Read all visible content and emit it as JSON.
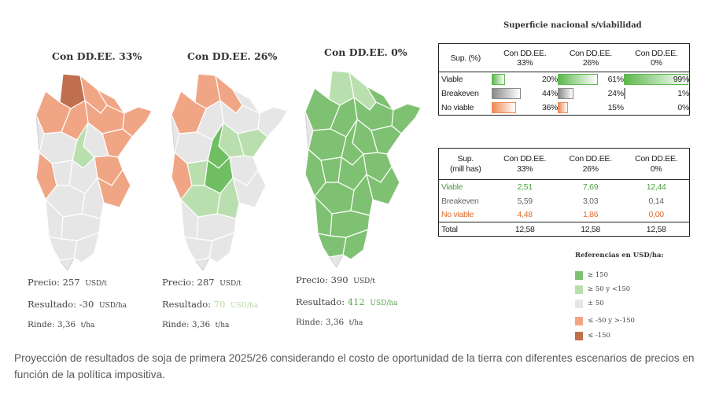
{
  "maps": [
    {
      "title": "Con DD.EE. 33%",
      "precio_label": "Precio:",
      "precio_value": "257",
      "precio_unit": "USD/t",
      "resultado_label": "Resultado:",
      "resultado_value": "-30",
      "resultado_unit": "USD/ha",
      "resultado_color": "#444444",
      "rinde_label": "Rinde:",
      "rinde_value": "3,36",
      "rinde_unit": "t/ha",
      "region_colors": [
        "#c0704f",
        "#f0a585",
        "#f0a585",
        "#f0a585",
        "#f0a585",
        "#f0a585",
        "#f0a585",
        "#f0a585",
        "#e6e6e6",
        "#b9dfae",
        "#e6e6e6",
        "#f0a585",
        "#e6e6e6",
        "#f0a585",
        "#e6e6e6",
        "#f0a585",
        "#e6e6e6",
        "#e6e6e6",
        "#e6e6e6",
        "#e6e6e6",
        "#e6e6e6",
        "#e6e6e6"
      ]
    },
    {
      "title": "Con DD.EE. 26%",
      "precio_label": "Precio:",
      "precio_value": "287",
      "precio_unit": "USD/t",
      "resultado_label": "Resultado:",
      "resultado_value": "70",
      "resultado_unit": "USD/ha",
      "resultado_color": "#b8d9a9",
      "rinde_label": "Rinde:",
      "rinde_value": "3,36",
      "rinde_unit": "t/ha",
      "region_colors": [
        "#f0a585",
        "#f0a585",
        "#e6e6e6",
        "#e6e6e6",
        "#e6e6e6",
        "#f0a585",
        "#e6e6e6",
        "#b9dfae",
        "#b9dfae",
        "#6fbe62",
        "#e6e6e6",
        "#f0a585",
        "#6fbe62",
        "#e6e6e6",
        "#b9dfae",
        "#e6e6e6",
        "#b9dfae",
        "#b9dfae",
        "#e6e6e6",
        "#e6e6e6",
        "#e6e6e6",
        "#e6e6e6"
      ]
    },
    {
      "title": "Con DD.EE. 0%",
      "precio_label": "Precio:",
      "precio_value": "390",
      "precio_unit": "USD/t",
      "resultado_label": "Resultado:",
      "resultado_value": "412",
      "resultado_unit": "USD/ha",
      "resultado_color": "#5aa84f",
      "rinde_label": "Rinde:",
      "rinde_value": "3,36",
      "rinde_unit": "t/ha",
      "region_colors": [
        "#b9dfae",
        "#b9dfae",
        "#7fc172",
        "#7fc172",
        "#7fc172",
        "#7fc172",
        "#7fc172",
        "#7fc172",
        "#7fc172",
        "#7fc172",
        "#7fc172",
        "#7fc172",
        "#7fc172",
        "#7fc172",
        "#7fc172",
        "#7fc172",
        "#7fc172",
        "#7fc172",
        "#7fc172",
        "#7fc172",
        "#7fc172",
        "#7fc172"
      ]
    }
  ],
  "table1": {
    "title": "Superficie nacional s/viabilidad",
    "header": [
      [
        "Sup. (%)",
        ""
      ],
      [
        "Con DD.EE.",
        "33%"
      ],
      [
        "Con DD.EE.",
        "26%"
      ],
      [
        "Con DD.EE.",
        "0%"
      ]
    ],
    "rows": [
      {
        "label": "Viable",
        "color": "#5cb84c",
        "values": [
          "20%",
          "61%",
          "99%"
        ],
        "fractions": [
          0.2,
          0.61,
          0.99
        ]
      },
      {
        "label": "Breakeven",
        "color": "#8a8a8a",
        "values": [
          "44%",
          "24%",
          "1%"
        ],
        "fractions": [
          0.44,
          0.24,
          0.01
        ]
      },
      {
        "label": "No viable",
        "color": "#ee8a55",
        "values": [
          "36%",
          "15%",
          "0%"
        ],
        "fractions": [
          0.36,
          0.15,
          0.0
        ]
      }
    ]
  },
  "table2": {
    "header": [
      [
        "Sup.",
        "(mill has)"
      ],
      [
        "Con DD.EE.",
        "33%"
      ],
      [
        "Con DD.EE.",
        "26%"
      ],
      [
        "Con DD.EE.",
        "0%"
      ]
    ],
    "rows": [
      {
        "label": "Viable",
        "color": "#4aa040",
        "values": [
          "2,51",
          "7,69",
          "12,44"
        ]
      },
      {
        "label": "Breakeven",
        "color": "#666666",
        "values": [
          "5,59",
          "3,03",
          "0,14"
        ]
      },
      {
        "label": "No viable",
        "color": "#e06a2a",
        "values": [
          "4,48",
          "1,86",
          "0,00"
        ]
      }
    ],
    "total": {
      "label": "Total",
      "values": [
        "12,58",
        "12,58",
        "12,58"
      ]
    }
  },
  "legend": {
    "title": "Referencias en USD/ha:",
    "items": [
      {
        "label": "≥ 150",
        "color": "#7fc172"
      },
      {
        "label": "≥ 50 y <150",
        "color": "#b9dfae"
      },
      {
        "label": "± 50",
        "color": "#e6e6e6"
      },
      {
        "label": "≤ -50 y >-150",
        "color": "#f0a585"
      },
      {
        "label": "≤ -150",
        "color": "#c0704f"
      }
    ]
  },
  "caption": "Proyección de resultados de soja de primera 2025/26 considerando el costo de oportunidad de la tierra con diferentes escenarios de precios en función de la política impositiva.",
  "chart_data": [
    {
      "type": "table",
      "title": "Superficie nacional s/viabilidad",
      "columns": [
        "Sup. (%)",
        "Con DD.EE. 33%",
        "Con DD.EE. 26%",
        "Con DD.EE. 0%"
      ],
      "rows": [
        [
          "Viable",
          "20%",
          "61%",
          "99%"
        ],
        [
          "Breakeven",
          "44%",
          "24%",
          "1%"
        ],
        [
          "No viable",
          "36%",
          "15%",
          "0%"
        ]
      ]
    },
    {
      "type": "table",
      "columns": [
        "Sup. (mill has)",
        "Con DD.EE. 33%",
        "Con DD.EE. 26%",
        "Con DD.EE. 0%"
      ],
      "rows": [
        [
          "Viable",
          "2,51",
          "7,69",
          "12,44"
        ],
        [
          "Breakeven",
          "5,59",
          "3,03",
          "0,14"
        ],
        [
          "No viable",
          "4,48",
          "1,86",
          "0,00"
        ],
        [
          "Total",
          "12,58",
          "12,58",
          "12,58"
        ]
      ]
    }
  ]
}
